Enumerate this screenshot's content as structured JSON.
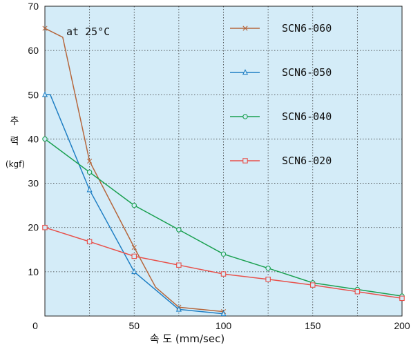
{
  "chart_data": {
    "type": "line",
    "xlabel": "속 도 (mm/sec)",
    "ylabel_lines": [
      "추",
      "력",
      "(kgf)"
    ],
    "annotation": "at 25°C",
    "xlim": [
      0,
      200
    ],
    "ylim": [
      0,
      70
    ],
    "xticks": [
      0,
      50,
      100,
      150,
      200
    ],
    "yticks": [
      10,
      20,
      30,
      40,
      50,
      60,
      70
    ],
    "grid": true,
    "legend_position": "top-right",
    "colors": {
      "background": "#d4ecf8",
      "grid": "#333333"
    },
    "series": [
      {
        "name": "SCN6-060",
        "color": "#b5663c",
        "marker": "x",
        "points": [
          [
            0,
            65
          ],
          [
            10,
            63
          ],
          [
            25,
            35
          ],
          [
            50,
            15.5
          ],
          [
            62,
            6.5
          ],
          [
            75,
            2
          ],
          [
            100,
            1
          ]
        ],
        "marker_points": [
          [
            0,
            65
          ],
          [
            25,
            35
          ],
          [
            50,
            15.5
          ],
          [
            75,
            2
          ],
          [
            100,
            1
          ]
        ]
      },
      {
        "name": "SCN6-050",
        "color": "#1f7fc4",
        "marker": "triangle",
        "points": [
          [
            0,
            50
          ],
          [
            3,
            50
          ],
          [
            25,
            28.5
          ],
          [
            50,
            10
          ],
          [
            75,
            1.5
          ],
          [
            100,
            0.5
          ]
        ],
        "marker_points": [
          [
            0,
            50
          ],
          [
            25,
            28.5
          ],
          [
            50,
            10
          ],
          [
            75,
            1.5
          ],
          [
            100,
            0.5
          ]
        ]
      },
      {
        "name": "SCN6-040",
        "color": "#1aa050",
        "marker": "circle",
        "points": [
          [
            0,
            40
          ],
          [
            25,
            32.5
          ],
          [
            50,
            25
          ],
          [
            75,
            19.5
          ],
          [
            100,
            14
          ],
          [
            125,
            10.8
          ],
          [
            150,
            7.5
          ],
          [
            175,
            6
          ],
          [
            200,
            4.5
          ]
        ],
        "marker_points": [
          [
            0,
            40
          ],
          [
            25,
            32.5
          ],
          [
            50,
            25
          ],
          [
            75,
            19.5
          ],
          [
            100,
            14
          ],
          [
            125,
            10.8
          ],
          [
            150,
            7.5
          ],
          [
            175,
            6
          ],
          [
            200,
            4.5
          ]
        ]
      },
      {
        "name": "SCN6-020",
        "color": "#e8504a",
        "marker": "square",
        "points": [
          [
            0,
            20
          ],
          [
            25,
            16.8
          ],
          [
            50,
            13.5
          ],
          [
            75,
            11.5
          ],
          [
            100,
            9.5
          ],
          [
            125,
            8.3
          ],
          [
            150,
            7
          ],
          [
            175,
            5.5
          ],
          [
            200,
            4
          ]
        ],
        "marker_points": [
          [
            0,
            20
          ],
          [
            25,
            16.8
          ],
          [
            50,
            13.5
          ],
          [
            75,
            11.5
          ],
          [
            100,
            9.5
          ],
          [
            125,
            8.3
          ],
          [
            150,
            7
          ],
          [
            175,
            5.5
          ],
          [
            200,
            4
          ]
        ]
      }
    ]
  }
}
